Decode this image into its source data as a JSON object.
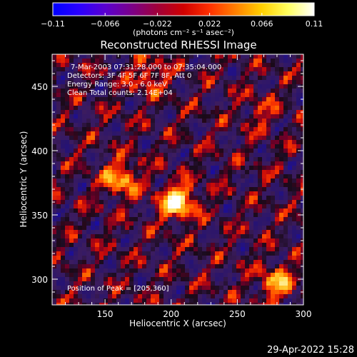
{
  "colorbar": {
    "ticks": [
      "−0.11",
      "−0.066",
      "−0.022",
      "0.022",
      "0.066",
      "0.11"
    ],
    "tick_values": [
      -0.11,
      -0.066,
      -0.022,
      0.022,
      0.066,
      0.11
    ],
    "range": [
      -0.11,
      0.11
    ],
    "unit_label": "(photons cm⁻² s⁻¹ asec⁻²)",
    "colormap": [
      "#0000ff",
      "#2a00ff",
      "#5a00d0",
      "#7a008a",
      "#a0003a",
      "#d00000",
      "#ff3000",
      "#ff8000",
      "#ffd000",
      "#ffff60",
      "#ffffff"
    ]
  },
  "chart_data": {
    "type": "heatmap",
    "title": "Reconstructed RHESSI Image",
    "xlabel": "Heliocentric X (arcsec)",
    "ylabel": "Heliocentric Y (arcsec)",
    "xlim": [
      110,
      300
    ],
    "ylim": [
      280,
      475
    ],
    "xticks": [
      150,
      200,
      250,
      300
    ],
    "yticks": [
      300,
      350,
      400,
      450
    ],
    "annotations": [
      "7-Mar-2003 07:31:28.000 to 07:35:04.000",
      "Detectors: 3F 4F 5F 6F 7F 8F, Att 0",
      "Energy Range: 3.0 - 6.0 keV",
      "Clean    Total counts: 2.14E+04"
    ],
    "peak_label": "Position of Peak = [205,360]",
    "peak": [
      205,
      360
    ],
    "sources": [
      {
        "x": 205,
        "y": 360,
        "value": 0.11
      },
      {
        "x": 162,
        "y": 378,
        "value": 0.075
      },
      {
        "x": 280,
        "y": 297,
        "value": 0.07
      },
      {
        "x": 183,
        "y": 458,
        "value": 0.05
      },
      {
        "x": 268,
        "y": 430,
        "value": 0.03
      }
    ]
  },
  "footer": {
    "timestamp": "29-Apr-2022 15:28"
  }
}
